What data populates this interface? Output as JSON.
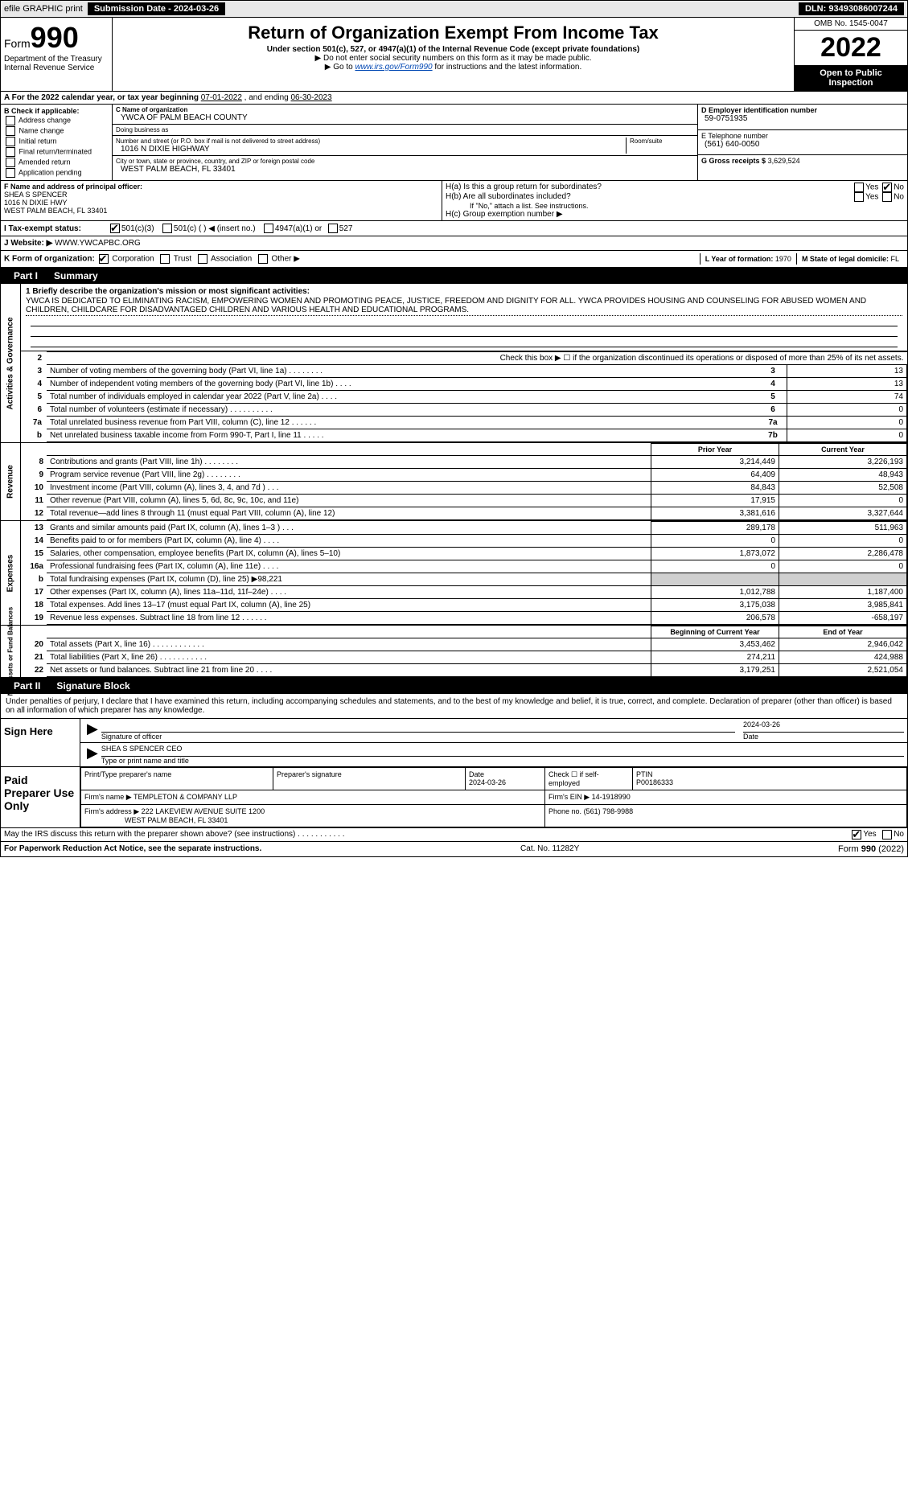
{
  "top": {
    "efile_label": "efile GRAPHIC print",
    "submission_label": "Submission Date - 2024-03-26",
    "dln": "DLN: 93493086007244"
  },
  "header": {
    "form_label": "Form",
    "form_num": "990",
    "dept": "Department of the Treasury",
    "irs": "Internal Revenue Service",
    "title": "Return of Organization Exempt From Income Tax",
    "sub1": "Under section 501(c), 527, or 4947(a)(1) of the Internal Revenue Code (except private foundations)",
    "sub2": "▶ Do not enter social security numbers on this form as it may be made public.",
    "sub3_pre": "▶ Go to ",
    "sub3_link": "www.irs.gov/Form990",
    "sub3_post": " for instructions and the latest information.",
    "omb": "OMB No. 1545-0047",
    "year": "2022",
    "open_public": "Open to Public Inspection"
  },
  "rowA": {
    "text_pre": "A For the 2022 calendar year, or tax year beginning ",
    "begin": "07-01-2022",
    "mid": " , and ending ",
    "end": "06-30-2023"
  },
  "colB": {
    "title": "B Check if applicable:",
    "items": [
      "Address change",
      "Name change",
      "Initial return",
      "Final return/terminated",
      "Amended return",
      "Application pending"
    ]
  },
  "colC": {
    "name_label": "C Name of organization",
    "name": "YWCA OF PALM BEACH COUNTY",
    "dba_label": "Doing business as",
    "dba": "",
    "street_label": "Number and street (or P.O. box if mail is not delivered to street address)",
    "room_label": "Room/suite",
    "street": "1016 N DIXIE HIGHWAY",
    "city_label": "City or town, state or province, country, and ZIP or foreign postal code",
    "city": "WEST PALM BEACH, FL  33401"
  },
  "colD": {
    "ein_label": "D Employer identification number",
    "ein": "59-0751935",
    "phone_label": "E Telephone number",
    "phone": "(561) 640-0050",
    "gross_label": "G Gross receipts $",
    "gross": "3,629,524"
  },
  "rowF": {
    "label": "F Name and address of principal officer:",
    "name": "SHEA S SPENCER",
    "addr1": "1016 N DIXIE HWY",
    "addr2": "WEST PALM BEACH, FL  33401"
  },
  "rowH": {
    "ha": "H(a) Is this a group return for subordinates?",
    "hb": "H(b) Are all subordinates included?",
    "hb_note": "If \"No,\" attach a list. See instructions.",
    "hc": "H(c) Group exemption number ▶",
    "yes": "Yes",
    "no": "No"
  },
  "rowI": {
    "label": "I Tax-exempt status:",
    "opts": [
      "501(c)(3)",
      "501(c) (  ) ◀ (insert no.)",
      "4947(a)(1) or",
      "527"
    ]
  },
  "rowJ": {
    "label": "J Website: ▶",
    "value": "WWW.YWCAPBC.ORG"
  },
  "rowK": {
    "label": "K Form of organization:",
    "opts": [
      "Corporation",
      "Trust",
      "Association",
      "Other ▶"
    ],
    "L_label": "L Year of formation:",
    "L_val": "1970",
    "M_label": "M State of legal domicile:",
    "M_val": "FL"
  },
  "part1": {
    "num": "Part I",
    "title": "Summary"
  },
  "mission": {
    "label": "1  Briefly describe the organization's mission or most significant activities:",
    "text": "YWCA IS DEDICATED TO ELIMINATING RACISM, EMPOWERING WOMEN AND PROMOTING PEACE, JUSTICE, FREEDOM AND DIGNITY FOR ALL. YWCA PROVIDES HOUSING AND COUNSELING FOR ABUSED WOMEN AND CHILDREN, CHILDCARE FOR DISADVANTAGED CHILDREN AND VARIOUS HEALTH AND EDUCATIONAL PROGRAMS."
  },
  "gov_rows": [
    {
      "n": "2",
      "desc": "Check this box ▶ ☐ if the organization discontinued its operations or disposed of more than 25% of its net assets.",
      "num": "",
      "val": ""
    },
    {
      "n": "3",
      "desc": "Number of voting members of the governing body (Part VI, line 1a)   .    .    .    .    .    .    .    .",
      "num": "3",
      "val": "13"
    },
    {
      "n": "4",
      "desc": "Number of independent voting members of the governing body (Part VI, line 1b)   .    .    .    .",
      "num": "4",
      "val": "13"
    },
    {
      "n": "5",
      "desc": "Total number of individuals employed in calendar year 2022 (Part V, line 2a)   .    .    .    .",
      "num": "5",
      "val": "74"
    },
    {
      "n": "6",
      "desc": "Total number of volunteers (estimate if necessary)   .    .    .    .    .    .    .    .    .    .",
      "num": "6",
      "val": "0"
    },
    {
      "n": "7a",
      "desc": "Total unrelated business revenue from Part VIII, column (C), line 12   .    .    .    .    .    .",
      "num": "7a",
      "val": "0"
    },
    {
      "n": "b",
      "desc": "Net unrelated business taxable income from Form 990-T, Part I, line 11   .    .    .    .    .",
      "num": "7b",
      "val": "0"
    }
  ],
  "fin_header": {
    "prior": "Prior Year",
    "current": "Current Year"
  },
  "revenue_rows": [
    {
      "n": "8",
      "desc": "Contributions and grants (Part VIII, line 1h)   .    .    .    .    .    .    .    .",
      "p": "3,214,449",
      "c": "3,226,193"
    },
    {
      "n": "9",
      "desc": "Program service revenue (Part VIII, line 2g)   .    .    .    .    .    .    .    .",
      "p": "64,409",
      "c": "48,943"
    },
    {
      "n": "10",
      "desc": "Investment income (Part VIII, column (A), lines 3, 4, and 7d )   .    .    .",
      "p": "84,843",
      "c": "52,508"
    },
    {
      "n": "11",
      "desc": "Other revenue (Part VIII, column (A), lines 5, 6d, 8c, 9c, 10c, and 11e)",
      "p": "17,915",
      "c": "0"
    },
    {
      "n": "12",
      "desc": "Total revenue—add lines 8 through 11 (must equal Part VIII, column (A), line 12)",
      "p": "3,381,616",
      "c": "3,327,644"
    }
  ],
  "expense_rows": [
    {
      "n": "13",
      "desc": "Grants and similar amounts paid (Part IX, column (A), lines 1–3 )   .    .    .",
      "p": "289,178",
      "c": "511,963"
    },
    {
      "n": "14",
      "desc": "Benefits paid to or for members (Part IX, column (A), line 4)   .    .    .    .",
      "p": "0",
      "c": "0"
    },
    {
      "n": "15",
      "desc": "Salaries, other compensation, employee benefits (Part IX, column (A), lines 5–10)",
      "p": "1,873,072",
      "c": "2,286,478"
    },
    {
      "n": "16a",
      "desc": "Professional fundraising fees (Part IX, column (A), line 11e)   .    .    .    .",
      "p": "0",
      "c": "0"
    },
    {
      "n": "b",
      "desc": "Total fundraising expenses (Part IX, column (D), line 25) ▶98,221",
      "p": "",
      "c": "",
      "shaded": true
    },
    {
      "n": "17",
      "desc": "Other expenses (Part IX, column (A), lines 11a–11d, 11f–24e)   .    .    .    .",
      "p": "1,012,788",
      "c": "1,187,400"
    },
    {
      "n": "18",
      "desc": "Total expenses. Add lines 13–17 (must equal Part IX, column (A), line 25)",
      "p": "3,175,038",
      "c": "3,985,841"
    },
    {
      "n": "19",
      "desc": "Revenue less expenses. Subtract line 18 from line 12   .    .    .    .    .    .",
      "p": "206,578",
      "c": "-658,197"
    }
  ],
  "net_header": {
    "begin": "Beginning of Current Year",
    "end": "End of Year"
  },
  "net_rows": [
    {
      "n": "20",
      "desc": "Total assets (Part X, line 16)   .    .    .    .    .    .    .    .    .    .    .    .",
      "p": "3,453,462",
      "c": "2,946,042"
    },
    {
      "n": "21",
      "desc": "Total liabilities (Part X, line 26)   .    .    .    .    .    .    .    .    .    .    .",
      "p": "274,211",
      "c": "424,988"
    },
    {
      "n": "22",
      "desc": "Net assets or fund balances. Subtract line 21 from line 20   .    .    .    .",
      "p": "3,179,251",
      "c": "2,521,054"
    }
  ],
  "part2": {
    "num": "Part II",
    "title": "Signature Block"
  },
  "sig_intro": "Under penalties of perjury, I declare that I have examined this return, including accompanying schedules and statements, and to the best of my knowledge and belief, it is true, correct, and complete. Declaration of preparer (other than officer) is based on all information of which preparer has any knowledge.",
  "sign": {
    "here": "Sign Here",
    "sig_label": "Signature of officer",
    "date_label": "Date",
    "date_val": "2024-03-26",
    "name": "SHEA S SPENCER  CEO",
    "name_label": "Type or print name and title"
  },
  "paid": {
    "title": "Paid Preparer Use Only",
    "h_name": "Print/Type preparer's name",
    "h_sig": "Preparer's signature",
    "h_date": "Date",
    "h_date_val": "2024-03-26",
    "h_check": "Check ☐ if self-employed",
    "ptin_label": "PTIN",
    "ptin": "P00186333",
    "firm_name_label": "Firm's name    ▶",
    "firm_name": "TEMPLETON & COMPANY LLP",
    "firm_ein_label": "Firm's EIN ▶",
    "firm_ein": "14-1918990",
    "firm_addr_label": "Firm's address ▶",
    "firm_addr1": "222 LAKEVIEW AVENUE SUITE 1200",
    "firm_addr2": "WEST PALM BEACH, FL  33401",
    "phone_label": "Phone no.",
    "phone": "(561) 798-9988"
  },
  "may_discuss": {
    "text": "May the IRS discuss this return with the preparer shown above? (see instructions)   .    .    .    .    .    .    .    .    .    .    .",
    "yes": "Yes",
    "no": "No"
  },
  "footer": {
    "left": "For Paperwork Reduction Act Notice, see the separate instructions.",
    "mid": "Cat. No. 11282Y",
    "right_pre": "Form ",
    "right_bold": "990",
    "right_post": " (2022)"
  },
  "side_labels": {
    "gov": "Activities & Governance",
    "rev": "Revenue",
    "exp": "Expenses",
    "net": "Net Assets or Fund Balances"
  }
}
